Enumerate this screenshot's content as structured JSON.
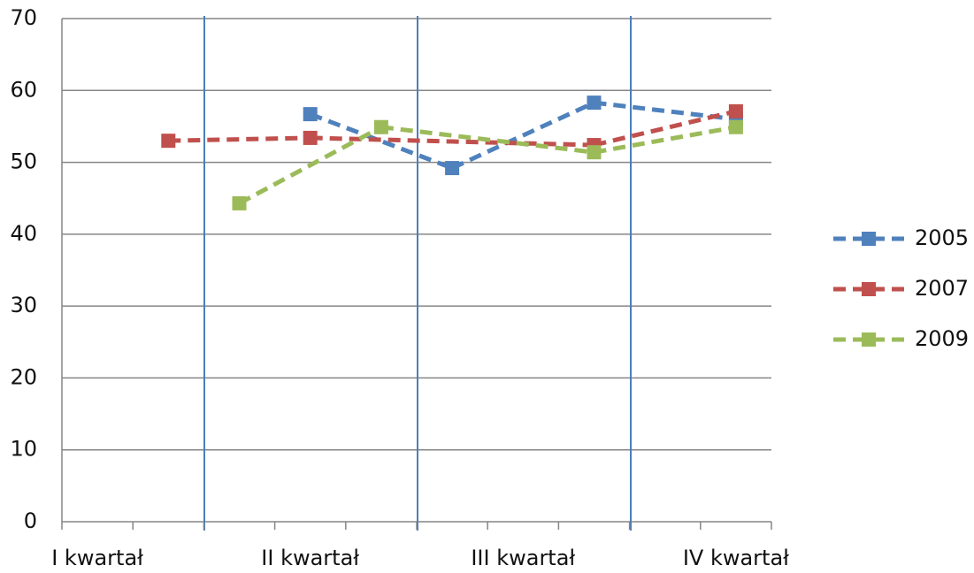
{
  "chart_data": {
    "type": "line",
    "categories": [
      "I kwartał",
      null,
      null,
      "II kwartał",
      null,
      null,
      "III kwartał",
      null,
      null,
      "IV kwartał"
    ],
    "series": [
      {
        "name": "2005",
        "color": "#4f81bd",
        "values": [
          null,
          null,
          null,
          56.7,
          null,
          49.2,
          null,
          58.3,
          null,
          56
        ]
      },
      {
        "name": "2007",
        "color": "#c0504d",
        "values": [
          null,
          53.0,
          null,
          53.4,
          null,
          null,
          null,
          52.4,
          null,
          57.1
        ]
      },
      {
        "name": "2009",
        "color": "#9bbb59",
        "values": [
          null,
          null,
          44.3,
          null,
          54.9,
          null,
          null,
          51.4,
          null,
          54.9
        ]
      }
    ],
    "ylim": [
      0,
      70
    ],
    "yticks": [
      0,
      10,
      20,
      30,
      40,
      50,
      60,
      70
    ],
    "grid": true,
    "legend": "right"
  }
}
